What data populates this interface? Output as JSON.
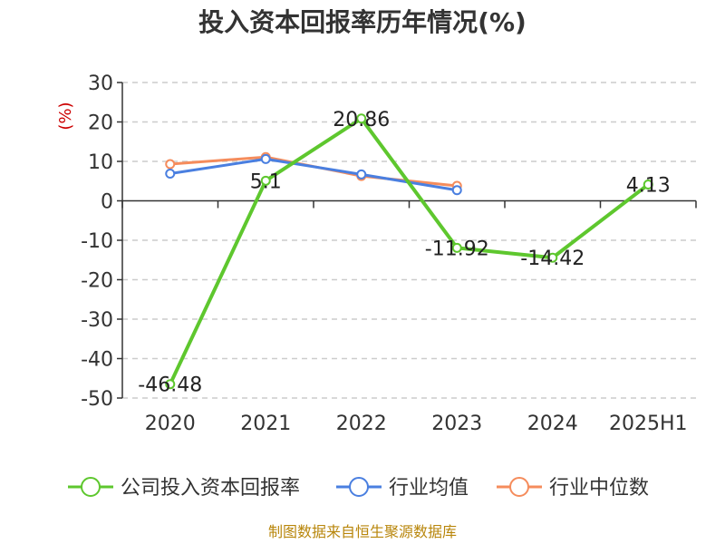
{
  "chart_data": {
    "type": "line",
    "title": "投入资本回报率历年情况(%)",
    "ylabel": "(%)",
    "categories": [
      "2020",
      "2021",
      "2022",
      "2023",
      "2024",
      "2025H1"
    ],
    "yticks": [
      30,
      20,
      10,
      0,
      -10,
      -20,
      -30,
      -40,
      -50
    ],
    "ylim": [
      -50,
      30
    ],
    "grid": true,
    "legend_position": "bottom",
    "series": [
      {
        "name": "公司投入资本回报率",
        "color": "#5ec72e",
        "values": [
          -46.48,
          5.1,
          20.86,
          -11.92,
          -14.42,
          4.13
        ],
        "labels": [
          "-46.48",
          "5.1",
          "20.86",
          "-11.92",
          "-14.42",
          "4.13"
        ]
      },
      {
        "name": "行业均值",
        "color": "#4a7fe0",
        "values": [
          6.9,
          10.6,
          6.7,
          2.7,
          null,
          null
        ]
      },
      {
        "name": "行业中位数",
        "color": "#f58c5c",
        "values": [
          9.3,
          11.1,
          6.3,
          3.8,
          null,
          null
        ]
      }
    ]
  },
  "source": "制图数据来自恒生聚源数据库"
}
